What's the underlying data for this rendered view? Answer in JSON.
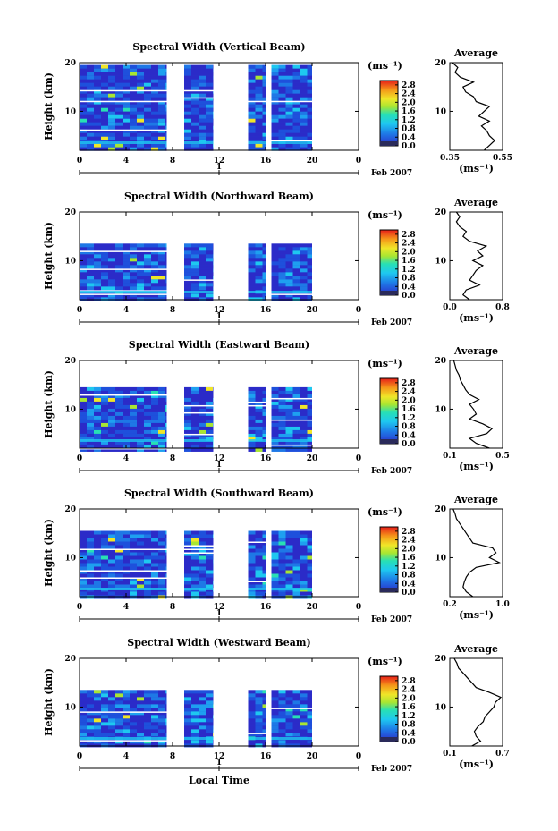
{
  "chart_data": [
    {
      "type": "heatmap",
      "title": "Spectral Width (Vertical Beam)",
      "ylabel": "Height (km)",
      "xlim": [
        0,
        24
      ],
      "ylim": [
        2,
        20
      ],
      "xticks": [
        "0",
        "4",
        "8",
        "12",
        "16",
        "20",
        "0"
      ],
      "yticks": [
        "10",
        "20"
      ],
      "date_axis": {
        "day": "1",
        "month_label": "Feb 2007"
      },
      "colorbar": {
        "unit": "(ms⁻¹)",
        "ticks": [
          "0.0",
          "0.4",
          "0.8",
          "1.2",
          "1.6",
          "2.0",
          "2.4",
          "2.8"
        ],
        "range": [
          0,
          3
        ]
      },
      "data_segments": [
        [
          0,
          7.5
        ],
        [
          9,
          11.5
        ],
        [
          14.5,
          16
        ],
        [
          16.5,
          20
        ]
      ],
      "top_height_km": 19.5,
      "average_profile": {
        "title": "Average",
        "xlabel": "(ms⁻¹)",
        "xticks": [
          "0.35",
          "0.55"
        ],
        "xlim": [
          0.35,
          0.55
        ],
        "heights_km": [
          2,
          3,
          4,
          5,
          6,
          7,
          8,
          9,
          10,
          11,
          12,
          13,
          14,
          15,
          16,
          17,
          18,
          19,
          20
        ],
        "values": [
          0.48,
          0.5,
          0.52,
          0.5,
          0.49,
          0.47,
          0.5,
          0.46,
          0.48,
          0.5,
          0.45,
          0.44,
          0.41,
          0.4,
          0.44,
          0.39,
          0.37,
          0.38,
          0.36
        ]
      }
    },
    {
      "type": "heatmap",
      "title": "Spectral Width (Northward Beam)",
      "ylabel": "Height (km)",
      "xlim": [
        0,
        24
      ],
      "ylim": [
        2,
        20
      ],
      "xticks": [
        "0",
        "4",
        "8",
        "12",
        "16",
        "20",
        "0"
      ],
      "yticks": [
        "10",
        "20"
      ],
      "date_axis": {
        "day": "1",
        "month_label": "Feb 2007"
      },
      "colorbar": {
        "unit": "(ms⁻¹)",
        "ticks": [
          "0.0",
          "0.4",
          "0.8",
          "1.2",
          "1.6",
          "2.0",
          "2.4",
          "2.8"
        ],
        "range": [
          0,
          3
        ]
      },
      "data_segments": [
        [
          0,
          7.5
        ],
        [
          9,
          11.5
        ],
        [
          14.5,
          16
        ],
        [
          16.5,
          20
        ]
      ],
      "top_height_km": 13.5,
      "average_profile": {
        "title": "Average",
        "xlabel": "(ms⁻¹)",
        "xticks": [
          "0.0",
          "0.8"
        ],
        "xlim": [
          0,
          0.8
        ],
        "heights_km": [
          2,
          3,
          4,
          5,
          6,
          7,
          8,
          9,
          10,
          11,
          12,
          13,
          14,
          15,
          16,
          17,
          18,
          19,
          20
        ],
        "values": [
          0.3,
          0.2,
          0.25,
          0.45,
          0.3,
          0.35,
          0.4,
          0.5,
          0.35,
          0.5,
          0.42,
          0.55,
          0.3,
          0.2,
          0.25,
          0.15,
          0.1,
          0.15,
          0.1
        ]
      }
    },
    {
      "type": "heatmap",
      "title": "Spectral Width (Eastward Beam)",
      "ylabel": "Height (km)",
      "xlim": [
        0,
        24
      ],
      "ylim": [
        2,
        20
      ],
      "xticks": [
        "0",
        "4",
        "8",
        "12",
        "16",
        "20",
        "0"
      ],
      "yticks": [
        "10",
        "20"
      ],
      "date_axis": {
        "day": "1",
        "month_label": "Feb 2007"
      },
      "colorbar": {
        "unit": "(ms⁻¹)",
        "ticks": [
          "0.0",
          "0.4",
          "0.8",
          "1.2",
          "1.6",
          "2.0",
          "2.4",
          "2.8"
        ],
        "range": [
          0,
          3
        ]
      },
      "data_segments": [
        [
          0,
          7.5
        ],
        [
          9,
          11.5
        ],
        [
          14.5,
          16
        ],
        [
          16.5,
          20
        ]
      ],
      "top_height_km": 14.5,
      "average_profile": {
        "title": "Average",
        "xlabel": "(ms⁻¹)",
        "xticks": [
          "0.1",
          "0.5"
        ],
        "xlim": [
          0.1,
          0.5
        ],
        "heights_km": [
          2,
          3,
          4,
          5,
          6,
          7,
          8,
          9,
          10,
          11,
          12,
          13,
          14,
          15,
          16,
          17,
          18,
          19,
          20
        ],
        "values": [
          0.4,
          0.3,
          0.25,
          0.38,
          0.42,
          0.35,
          0.25,
          0.3,
          0.28,
          0.25,
          0.32,
          0.25,
          0.22,
          0.2,
          0.18,
          0.17,
          0.15,
          0.14,
          0.13
        ]
      }
    },
    {
      "type": "heatmap",
      "title": "Spectral Width (Southward Beam)",
      "ylabel": "Height (km)",
      "xlim": [
        0,
        24
      ],
      "ylim": [
        2,
        20
      ],
      "xticks": [
        "0",
        "4",
        "8",
        "12",
        "16",
        "20",
        "0"
      ],
      "yticks": [
        "10",
        "20"
      ],
      "date_axis": {
        "day": "1",
        "month_label": "Feb 2007"
      },
      "colorbar": {
        "unit": "(ms⁻¹)",
        "ticks": [
          "0.0",
          "0.4",
          "0.8",
          "1.2",
          "1.6",
          "2.0",
          "2.4",
          "2.8"
        ],
        "range": [
          0,
          3
        ]
      },
      "data_segments": [
        [
          0,
          7.5
        ],
        [
          9,
          11.5
        ],
        [
          14.5,
          16
        ],
        [
          16.5,
          20
        ]
      ],
      "top_height_km": 15.5,
      "average_profile": {
        "title": "Average",
        "xlabel": "(ms⁻¹)",
        "xticks": [
          "0.2",
          "1.0"
        ],
        "xlim": [
          0.2,
          1.0
        ],
        "heights_km": [
          2,
          3,
          4,
          5,
          6,
          7,
          8,
          9,
          10,
          11,
          12,
          13,
          14,
          15,
          16,
          17,
          18,
          19,
          20
        ],
        "values": [
          0.55,
          0.45,
          0.4,
          0.42,
          0.45,
          0.5,
          0.6,
          0.95,
          0.8,
          0.9,
          0.85,
          0.55,
          0.5,
          0.45,
          0.4,
          0.35,
          0.3,
          0.28,
          0.25
        ]
      }
    },
    {
      "type": "heatmap",
      "title": "Spectral Width (Westward Beam)",
      "ylabel": "Height (km)",
      "xlabel": "Local Time",
      "xlim": [
        0,
        24
      ],
      "ylim": [
        2,
        20
      ],
      "xticks": [
        "0",
        "4",
        "8",
        "12",
        "16",
        "20",
        "0"
      ],
      "yticks": [
        "10",
        "20"
      ],
      "date_axis": {
        "day": "1",
        "month_label": "Feb 2007"
      },
      "colorbar": {
        "unit": "(ms⁻¹)",
        "ticks": [
          "0.0",
          "0.4",
          "0.8",
          "1.2",
          "1.6",
          "2.0",
          "2.4",
          "2.8"
        ],
        "range": [
          0,
          3
        ]
      },
      "data_segments": [
        [
          0,
          7.5
        ],
        [
          9,
          11.5
        ],
        [
          14.5,
          16
        ],
        [
          16.5,
          20
        ]
      ],
      "top_height_km": 13.5,
      "average_profile": {
        "title": "Average",
        "xlabel": "(ms⁻¹)",
        "xticks": [
          "0.1",
          "0.7"
        ],
        "xlim": [
          0.1,
          0.7
        ],
        "heights_km": [
          2,
          3,
          4,
          5,
          6,
          7,
          8,
          9,
          10,
          11,
          12,
          13,
          14,
          15,
          16,
          17,
          18,
          19,
          20
        ],
        "values": [
          0.35,
          0.45,
          0.4,
          0.38,
          0.42,
          0.48,
          0.5,
          0.55,
          0.6,
          0.62,
          0.68,
          0.55,
          0.4,
          0.35,
          0.3,
          0.25,
          0.2,
          0.18,
          0.15
        ]
      }
    }
  ]
}
